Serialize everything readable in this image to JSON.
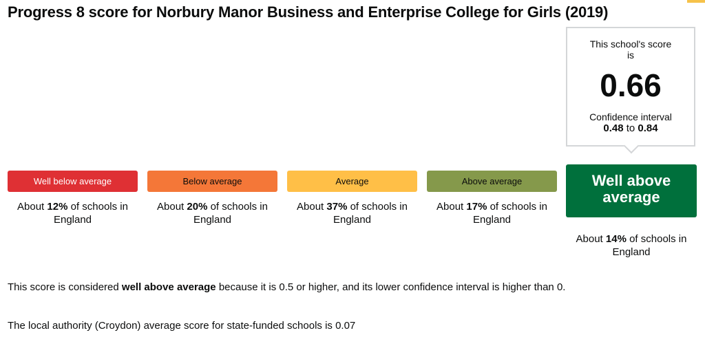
{
  "page": {
    "title": "Progress 8 score for Norbury Manor Business and Enterprise College for Girls (2019)",
    "accent_color": "#f6c24a"
  },
  "score": {
    "caption": "This school's score is",
    "value": "0.66",
    "ci_label": "Confidence interval",
    "ci_low": "0.48",
    "ci_to": "to",
    "ci_high": "0.84"
  },
  "bands": [
    {
      "label": "Well below average",
      "pct_prefix": "About",
      "pct": "12%",
      "pct_suffix": "of schools in England",
      "color": "#df3034"
    },
    {
      "label": "Below average",
      "pct_prefix": "About",
      "pct": "20%",
      "pct_suffix": "of schools in England",
      "color": "#f47738"
    },
    {
      "label": "Average",
      "pct_prefix": "About",
      "pct": "37%",
      "pct_suffix": "of schools in England",
      "color": "#ffbf47"
    },
    {
      "label": "Above average",
      "pct_prefix": "About",
      "pct": "17%",
      "pct_suffix": "of schools in England",
      "color": "#85994b"
    },
    {
      "label": "Well above average",
      "pct_prefix": "About",
      "pct": "14%",
      "pct_suffix": "of schools in England",
      "color": "#00703c",
      "selected": true
    }
  ],
  "explanation": {
    "prefix": "This score is considered",
    "emphasis": "well above average",
    "suffix": "because it is 0.5 or higher, and its lower confidence interval is higher than 0."
  },
  "local_authority": {
    "text": "The local authority (Croydon) average score for state-funded schools is 0.07"
  }
}
